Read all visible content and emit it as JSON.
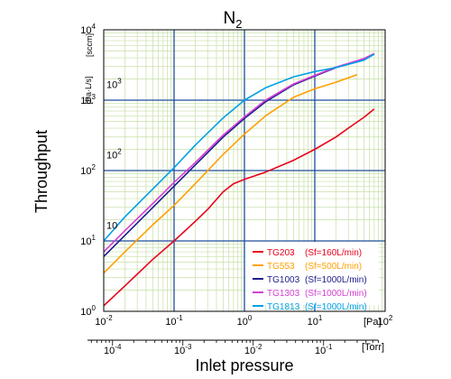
{
  "chart_data": {
    "type": "line",
    "title": "N",
    "title_sub": "2",
    "xlabel": "Inlet pressure",
    "ylabel": "Throughput",
    "x_scale": "log",
    "y_scale": "log",
    "xlim": [
      0.01,
      100
    ],
    "ylim": [
      1,
      10000
    ],
    "x_unit": "[Pa]",
    "x2_unit": "[Torr]",
    "y_unit_left": "[sccm]",
    "y_unit_right": "[Pa·L/s]",
    "x_ticks": [
      {
        "value": 0.01,
        "mantissa": "10",
        "exp": "-2"
      },
      {
        "value": 0.1,
        "mantissa": "10",
        "exp": "-1"
      },
      {
        "value": 1,
        "mantissa": "10",
        "exp": "0"
      },
      {
        "value": 10,
        "mantissa": "10",
        "exp": "1"
      },
      {
        "value": 100,
        "mantissa": "10",
        "exp": "2"
      }
    ],
    "x2_ticks": [
      {
        "value": 0.0001,
        "mantissa": "10",
        "exp": "-4"
      },
      {
        "value": 0.001,
        "mantissa": "10",
        "exp": "-3"
      },
      {
        "value": 0.01,
        "mantissa": "10",
        "exp": "-2"
      },
      {
        "value": 0.1,
        "mantissa": "10",
        "exp": "-1"
      }
    ],
    "y_ticks": [
      {
        "value": 1,
        "mantissa": "10",
        "exp": "0"
      },
      {
        "value": 10,
        "mantissa": "10",
        "exp": "1"
      },
      {
        "value": 100,
        "mantissa": "10",
        "exp": "2"
      },
      {
        "value": 1000,
        "mantissa": "10",
        "exp": "3"
      },
      {
        "value": 10000,
        "mantissa": "10",
        "exp": "4"
      }
    ],
    "y2_ticks": [
      {
        "value": 10,
        "mantissa": "10",
        "exp": ""
      },
      {
        "value": 100,
        "mantissa": "10",
        "exp": "2"
      },
      {
        "value": 1000,
        "mantissa": "10",
        "exp": "3"
      }
    ],
    "grid": true,
    "legend_position": "bottom-right",
    "series": [
      {
        "name": "TG203",
        "note": "(Sf=160L/min)",
        "color": "#e8001c",
        "points": [
          [
            0.01,
            1.2
          ],
          [
            0.02,
            2.3
          ],
          [
            0.05,
            5.5
          ],
          [
            0.1,
            10
          ],
          [
            0.2,
            19
          ],
          [
            0.3,
            28
          ],
          [
            0.5,
            50
          ],
          [
            0.7,
            65
          ],
          [
            1,
            75
          ],
          [
            2,
            95
          ],
          [
            5,
            140
          ],
          [
            10,
            200
          ],
          [
            20,
            300
          ],
          [
            30,
            400
          ],
          [
            50,
            570
          ],
          [
            70,
            750
          ]
        ]
      },
      {
        "name": "TG553",
        "note": "(Sf=500L/min)",
        "color": "#ffa000",
        "points": [
          [
            0.01,
            3.5
          ],
          [
            0.02,
            7
          ],
          [
            0.05,
            17
          ],
          [
            0.1,
            32
          ],
          [
            0.2,
            65
          ],
          [
            0.5,
            170
          ],
          [
            1,
            330
          ],
          [
            2,
            600
          ],
          [
            5,
            1100
          ],
          [
            10,
            1450
          ],
          [
            20,
            1800
          ],
          [
            40,
            2300
          ]
        ]
      },
      {
        "name": "TG1003",
        "note": "(Sf=1000L/min)",
        "color": "#1c1c8c",
        "points": [
          [
            0.01,
            6
          ],
          [
            0.02,
            12
          ],
          [
            0.05,
            30
          ],
          [
            0.1,
            60
          ],
          [
            0.2,
            120
          ],
          [
            0.5,
            300
          ],
          [
            1,
            550
          ],
          [
            2,
            950
          ],
          [
            5,
            1650
          ],
          [
            10,
            2200
          ],
          [
            20,
            2900
          ],
          [
            50,
            3800
          ],
          [
            70,
            4500
          ]
        ]
      },
      {
        "name": "TG1303",
        "note": "(Sf=1000L/min)",
        "color": "#d43fd4",
        "points": [
          [
            0.01,
            7
          ],
          [
            0.02,
            14
          ],
          [
            0.05,
            34
          ],
          [
            0.1,
            68
          ],
          [
            0.2,
            130
          ],
          [
            0.5,
            320
          ],
          [
            1,
            580
          ],
          [
            2,
            1000
          ],
          [
            5,
            1700
          ],
          [
            10,
            2250
          ],
          [
            20,
            2950
          ],
          [
            50,
            3900
          ],
          [
            70,
            4600
          ]
        ]
      },
      {
        "name": "TG1813",
        "note": "(Sf=1000L/min)",
        "color": "#00a0e8",
        "points": [
          [
            0.01,
            10
          ],
          [
            0.02,
            22
          ],
          [
            0.05,
            55
          ],
          [
            0.1,
            110
          ],
          [
            0.2,
            230
          ],
          [
            0.5,
            560
          ],
          [
            1,
            1000
          ],
          [
            2,
            1500
          ],
          [
            5,
            2150
          ],
          [
            10,
            2550
          ],
          [
            20,
            2900
          ],
          [
            50,
            3700
          ],
          [
            70,
            4500
          ]
        ]
      }
    ]
  }
}
